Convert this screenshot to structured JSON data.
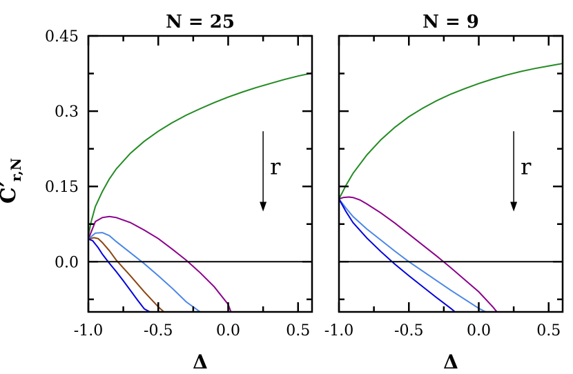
{
  "y_axis_label": "C′",
  "y_axis_label_sub": "r,N",
  "chart_data": [
    {
      "type": "line",
      "title": "N = 25",
      "xlabel": "Δ",
      "xlim": [
        -1.0,
        0.6
      ],
      "ylim": [
        -0.1,
        0.45
      ],
      "xticks": [
        -1.0,
        -0.5,
        0.0,
        0.5
      ],
      "xtick_labels": [
        "-1.0",
        "-0.5",
        "0.0",
        "0.5"
      ],
      "yticks": [
        0.0,
        0.15,
        0.3,
        0.45
      ],
      "ytick_labels": [
        "0.0",
        "0.15",
        "0.3",
        "0.45"
      ],
      "hline": 0.0,
      "annotation": {
        "text": "r",
        "arrow_from": [
          0.25,
          0.26
        ],
        "arrow_to": [
          0.25,
          0.1
        ]
      },
      "series": [
        {
          "color": "#228b22",
          "x": [
            -1.0,
            -0.98,
            -0.95,
            -0.9,
            -0.85,
            -0.8,
            -0.7,
            -0.6,
            -0.5,
            -0.4,
            -0.3,
            -0.2,
            -0.1,
            0.0,
            0.1,
            0.2,
            0.3,
            0.4,
            0.5,
            0.6
          ],
          "y": [
            0.052,
            0.08,
            0.11,
            0.14,
            0.165,
            0.185,
            0.216,
            0.24,
            0.26,
            0.277,
            0.292,
            0.305,
            0.317,
            0.328,
            0.338,
            0.347,
            0.355,
            0.363,
            0.37,
            0.376
          ]
        },
        {
          "color": "#8b008b",
          "x": [
            -1.0,
            -0.95,
            -0.9,
            -0.85,
            -0.8,
            -0.7,
            -0.6,
            -0.5,
            -0.4,
            -0.3,
            -0.2,
            -0.1,
            0.0,
            0.02
          ],
          "y": [
            0.045,
            0.08,
            0.088,
            0.09,
            0.088,
            0.078,
            0.063,
            0.046,
            0.025,
            0.003,
            -0.022,
            -0.05,
            -0.085,
            -0.1
          ]
        },
        {
          "color": "#4a86e8",
          "x": [
            -1.0,
            -0.95,
            -0.9,
            -0.85,
            -0.8,
            -0.7,
            -0.6,
            -0.5,
            -0.4,
            -0.3,
            -0.2
          ],
          "y": [
            0.045,
            0.057,
            0.058,
            0.052,
            0.04,
            0.018,
            -0.004,
            -0.028,
            -0.053,
            -0.08,
            -0.1
          ]
        },
        {
          "color": "#8b4513",
          "x": [
            -1.0,
            -0.96,
            -0.93,
            -0.9,
            -0.85,
            -0.8,
            -0.7,
            -0.6,
            -0.5,
            -0.46
          ],
          "y": [
            0.045,
            0.048,
            0.046,
            0.038,
            0.022,
            0.003,
            -0.028,
            -0.06,
            -0.09,
            -0.1
          ]
        },
        {
          "color": "#0000dd",
          "x": [
            -1.0,
            -0.97,
            -0.93,
            -0.9,
            -0.85,
            -0.8,
            -0.75,
            -0.7,
            -0.65,
            -0.6,
            -0.56
          ],
          "y": [
            0.045,
            0.042,
            0.028,
            0.015,
            -0.003,
            -0.02,
            -0.038,
            -0.057,
            -0.076,
            -0.094,
            -0.1
          ]
        }
      ]
    },
    {
      "type": "line",
      "title": "N = 9",
      "xlabel": "Δ",
      "xlim": [
        -1.0,
        0.6
      ],
      "ylim": [
        -0.1,
        0.45
      ],
      "xticks": [
        -1.0,
        -0.5,
        0.0,
        0.5
      ],
      "xtick_labels": [
        "-1.0",
        "-0.5",
        "0.0",
        "0.5"
      ],
      "yticks": [
        0.0,
        0.15,
        0.3,
        0.45
      ],
      "hline": 0.0,
      "annotation": {
        "text": "r",
        "arrow_from": [
          0.25,
          0.26
        ],
        "arrow_to": [
          0.25,
          0.1
        ]
      },
      "series": [
        {
          "color": "#228b22",
          "x": [
            -1.0,
            -0.95,
            -0.9,
            -0.8,
            -0.7,
            -0.6,
            -0.5,
            -0.4,
            -0.3,
            -0.2,
            -0.1,
            0.0,
            0.1,
            0.2,
            0.3,
            0.4,
            0.5,
            0.6
          ],
          "y": [
            0.125,
            0.152,
            0.176,
            0.213,
            0.243,
            0.268,
            0.289,
            0.306,
            0.321,
            0.334,
            0.345,
            0.355,
            0.364,
            0.372,
            0.379,
            0.385,
            0.39,
            0.395
          ]
        },
        {
          "color": "#8b008b",
          "x": [
            -1.0,
            -0.97,
            -0.93,
            -0.9,
            -0.85,
            -0.8,
            -0.7,
            -0.6,
            -0.5,
            -0.4,
            -0.3,
            -0.2,
            -0.1,
            0.0,
            0.1,
            0.13
          ],
          "y": [
            0.125,
            0.128,
            0.129,
            0.128,
            0.123,
            0.115,
            0.097,
            0.077,
            0.055,
            0.033,
            0.011,
            -0.012,
            -0.036,
            -0.06,
            -0.09,
            -0.1
          ]
        },
        {
          "color": "#4a86e8",
          "x": [
            -1.0,
            -0.95,
            -0.9,
            -0.8,
            -0.7,
            -0.6,
            -0.5,
            -0.4,
            -0.3,
            -0.2,
            -0.1,
            0.0,
            0.05
          ],
          "y": [
            0.125,
            0.107,
            0.09,
            0.065,
            0.043,
            0.021,
            0.0,
            -0.019,
            -0.038,
            -0.057,
            -0.075,
            -0.093,
            -0.1
          ]
        },
        {
          "color": "#0000dd",
          "x": [
            -1.0,
            -0.95,
            -0.9,
            -0.8,
            -0.7,
            -0.6,
            -0.5,
            -0.4,
            -0.3,
            -0.2,
            -0.17
          ],
          "y": [
            0.125,
            0.1,
            0.078,
            0.047,
            0.02,
            -0.005,
            -0.028,
            -0.05,
            -0.072,
            -0.093,
            -0.1
          ]
        }
      ]
    }
  ]
}
